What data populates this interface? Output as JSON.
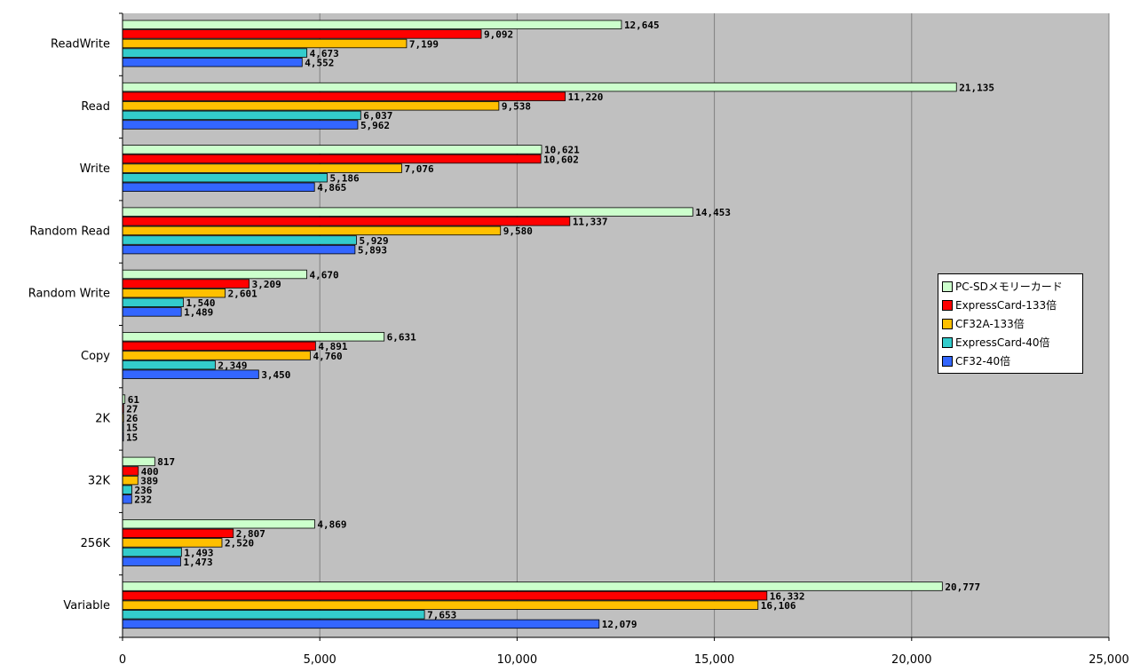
{
  "chart_data": {
    "type": "bar",
    "orientation": "horizontal",
    "categories": [
      "ReadWrite",
      "Read",
      "Write",
      "Random Read",
      "Random Write",
      "Copy",
      "2K",
      "32K",
      "256K",
      "Variable"
    ],
    "series": [
      {
        "name": "PC-SDメモリーカード",
        "color": "#ccffcc",
        "values": [
          12645,
          21135,
          10621,
          14453,
          4670,
          6631,
          61,
          817,
          4869,
          20777
        ],
        "labels": [
          "12,645",
          "21,135",
          "10,621",
          "14,453",
          "4,670",
          "6,631",
          "61",
          "817",
          "4,869",
          "20,777"
        ]
      },
      {
        "name": "ExpressCard-133倍",
        "color": "#ff0000",
        "values": [
          9092,
          11220,
          10602,
          11337,
          3209,
          4891,
          27,
          400,
          2807,
          16332
        ],
        "labels": [
          "9,092",
          "11,220",
          "10,602",
          "11,337",
          "3,209",
          "4,891",
          "27",
          "400",
          "2,807",
          "16,332"
        ]
      },
      {
        "name": "CF32A-133倍",
        "color": "#ffc000",
        "values": [
          7199,
          9538,
          7076,
          9580,
          2601,
          4760,
          26,
          389,
          2520,
          16106
        ],
        "labels": [
          "7,199",
          "9,538",
          "7,076",
          "9,580",
          "2,601",
          "4,760",
          "26",
          "389",
          "2,520",
          "16,106"
        ]
      },
      {
        "name": "ExpressCard-40倍",
        "color": "#33cccc",
        "values": [
          4673,
          6037,
          5186,
          5929,
          1540,
          2349,
          15,
          236,
          1493,
          7653
        ],
        "labels": [
          "4,673",
          "6,037",
          "5,186",
          "5,929",
          "1,540",
          "2,349",
          "15",
          "236",
          "1,493",
          "7,653"
        ]
      },
      {
        "name": "CF32-40倍",
        "color": "#3366ff",
        "values": [
          4552,
          5962,
          4865,
          5893,
          1489,
          3450,
          15,
          232,
          1473,
          12079
        ],
        "labels": [
          "4,552",
          "5,962",
          "4,865",
          "5,893",
          "1,489",
          "3,450",
          "15",
          "232",
          "1,473",
          "12,079"
        ]
      }
    ],
    "xlim": [
      0,
      25000
    ],
    "x_ticks": [
      0,
      5000,
      10000,
      15000,
      20000,
      25000
    ],
    "x_tick_labels": [
      "0",
      "5,000",
      "10,000",
      "15,000",
      "20,000",
      "25,000"
    ],
    "title": "",
    "xlabel": "",
    "ylabel": "",
    "grid": "vertical",
    "legend_position": "right",
    "plot_background": "#c0c0c0"
  }
}
